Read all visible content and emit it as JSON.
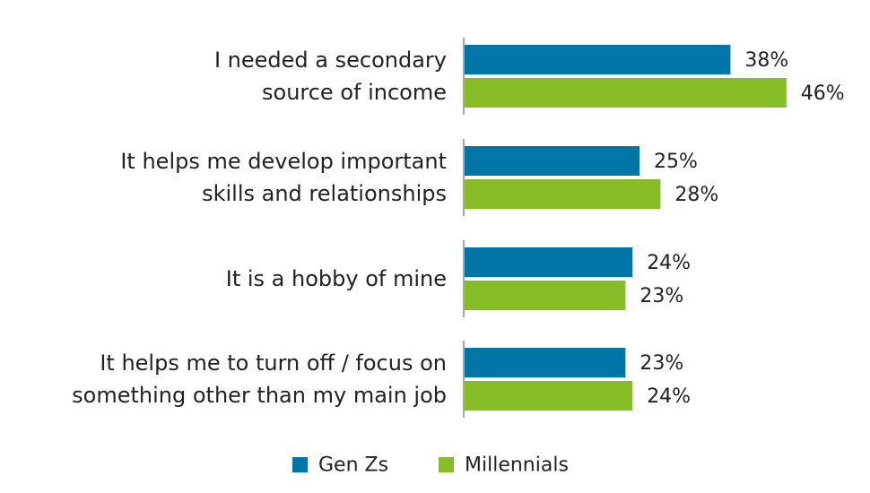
{
  "chart_data": {
    "type": "bar",
    "orientation": "horizontal",
    "categories": [
      [
        "I needed a secondary",
        "source of income"
      ],
      [
        "It helps me develop important",
        "skills and relationships"
      ],
      [
        "It is a hobby of mine"
      ],
      [
        "It helps me to turn off / focus on",
        "something other than my main job"
      ]
    ],
    "series": [
      {
        "name": "Gen Zs",
        "color": "#0076a8",
        "values": [
          38,
          25,
          24,
          23
        ],
        "labels": [
          "38%",
          "25%",
          "24%",
          "23%"
        ]
      },
      {
        "name": "Millennials",
        "color": "#86bc25",
        "values": [
          46,
          28,
          23,
          24
        ],
        "labels": [
          "46%",
          "28%",
          "23%",
          "24%"
        ]
      }
    ],
    "xlim": [
      0,
      50
    ],
    "grid": false,
    "legend_position": "bottom"
  }
}
